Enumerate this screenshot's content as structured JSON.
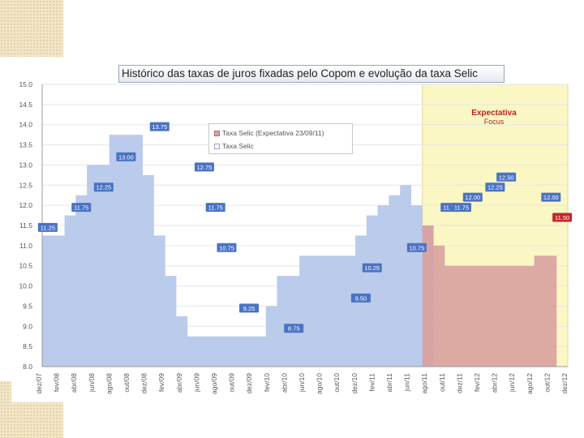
{
  "slide": {
    "expectation_label": "Expectativa",
    "expectation_source": "Focus"
  },
  "chart_data": {
    "type": "area",
    "title": "Histórico das taxas de juros fixadas pelo Copom e evolução da taxa Selic",
    "xlabel": "",
    "ylabel": "",
    "ylim": [
      8.0,
      15.0
    ],
    "yticks": [
      "15.0",
      "14.5",
      "14.0",
      "13.5",
      "13.0",
      "12.5",
      "12.0",
      "11.5",
      "11.0",
      "10.5",
      "10.0",
      "9.5",
      "9.0",
      "8.5",
      "8.0"
    ],
    "xticks": [
      "dez/07",
      "fev/08",
      "abr/08",
      "jun/08",
      "ago/08",
      "out/08",
      "dez/08",
      "fev/09",
      "abr/09",
      "jun/09",
      "ago/09",
      "out/09",
      "dez/09",
      "fev/10",
      "abr/10",
      "jun/10",
      "ago/10",
      "out/10",
      "dez/10",
      "fev/11",
      "abr/11",
      "jun/11",
      "ago/11",
      "out/11",
      "dez/11",
      "fev/12",
      "abr/12",
      "jun/12",
      "ago/12",
      "out/12",
      "dez/12"
    ],
    "legend": {
      "position": "inside-top-center",
      "entries": [
        "Taxa Selic (Expectativa 23/09/11)",
        "Taxa Selic"
      ]
    },
    "series": [
      {
        "name": "Taxa Selic",
        "color": "#b7c8ea",
        "start_index": 0,
        "values": [
          11.25,
          11.25,
          11.75,
          12.25,
          13.0,
          13.0,
          13.75,
          13.75,
          13.75,
          12.75,
          11.25,
          10.25,
          9.25,
          8.75,
          8.75,
          8.75,
          8.75,
          8.75,
          8.75,
          8.75,
          9.5,
          10.25,
          10.25,
          10.75,
          10.75,
          10.75,
          10.75,
          10.75,
          11.25,
          11.75,
          12.0,
          12.25,
          12.5,
          12.0,
          11.5
        ]
      },
      {
        "name": "Taxa Selic (Expectativa 23/09/11)",
        "color": "#d9a0a0",
        "start_index": 34,
        "values": [
          11.5,
          11.0,
          10.5,
          10.5,
          10.5,
          10.5,
          10.5,
          10.5,
          10.5,
          10.5,
          10.75,
          10.75
        ]
      }
    ],
    "data_labels": [
      {
        "index": 0,
        "value": "11.25",
        "series": 0
      },
      {
        "index": 3,
        "value": "11.75",
        "series": 0
      },
      {
        "index": 5,
        "value": "12.25",
        "series": 0
      },
      {
        "index": 7,
        "value": "13.00",
        "series": 0
      },
      {
        "index": 10,
        "value": "13.75",
        "series": 0
      },
      {
        "index": 14,
        "value": "12.75",
        "series": 0
      },
      {
        "index": 15,
        "value": "11.75",
        "series": 0
      },
      {
        "index": 16,
        "value": "10.75",
        "series": 0
      },
      {
        "index": 18,
        "value": "9.25",
        "series": 0
      },
      {
        "index": 22,
        "value": "8.75",
        "series": 0
      },
      {
        "index": 28,
        "value": "9.50",
        "series": 0
      },
      {
        "index": 29,
        "value": "10.25",
        "series": 0
      },
      {
        "index": 33,
        "value": "10.75",
        "series": 0
      },
      {
        "index": 36,
        "value": "11.75",
        "series": 0
      },
      {
        "index": 37,
        "value": "11.75",
        "series": 0
      },
      {
        "index": 38,
        "value": "12.00",
        "series": 0
      },
      {
        "index": 40,
        "value": "12.25",
        "series": 0
      },
      {
        "index": 41,
        "value": "12.50",
        "series": 0
      },
      {
        "index": 45,
        "value": "12.00",
        "series": 0
      },
      {
        "index": 46,
        "value": "11.50",
        "series": 1
      },
      {
        "index": 48,
        "value": "11.00",
        "series": 1
      },
      {
        "index": 52,
        "value": "10.50",
        "series": 1
      },
      {
        "index": 60,
        "value": "10.75",
        "series": 1
      }
    ],
    "colors": {
      "actual_fill": "#b7c8ea",
      "forecast_fill": "#d9a0a0",
      "forecast_region": "#fbf7c4",
      "actual_label_bg": "#4a73c4",
      "forecast_label_bg": "#c0282d"
    }
  }
}
